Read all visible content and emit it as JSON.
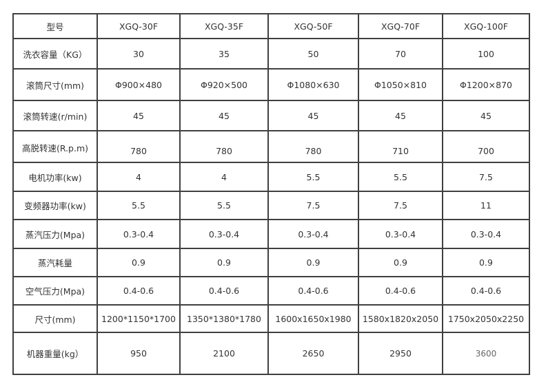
{
  "table": {
    "headers": [
      "型号",
      "XGQ-30F",
      "XGQ-35F",
      "XGQ-50F",
      "XGQ-70F",
      "XGQ-100F"
    ],
    "rows": [
      {
        "label": "洗衣容量（KG）",
        "values": [
          "30",
          "35",
          "50",
          "70",
          "100"
        ]
      },
      {
        "label": "滚筒尺寸(mm)",
        "values": [
          "Φ900×480",
          "Φ920×500",
          "Φ1080×630",
          "Φ1050×810",
          "Φ1200×870"
        ]
      },
      {
        "label": "滚筒转速(r/min)",
        "values": [
          "45",
          "45",
          "45",
          "45",
          "45"
        ]
      },
      {
        "label": "高脱转速(R.p.m)",
        "values": [
          "780",
          "780",
          "780",
          "710",
          "700"
        ]
      },
      {
        "label": "电机功率(kw)",
        "values": [
          "4",
          "4",
          "5.5",
          "5.5",
          "7.5"
        ]
      },
      {
        "label": "变频器功率(kw)",
        "values": [
          "5.5",
          "5.5",
          "7.5",
          "7.5",
          "11"
        ]
      },
      {
        "label": "蒸汽压力(Mpa)",
        "values": [
          "0.3-0.4",
          "0.3-0.4",
          "0.3-0.4",
          "0.3-0.4",
          "0.3-0.4"
        ]
      },
      {
        "label": "蒸汽耗量",
        "values": [
          "0.9",
          "0.9",
          "0.9",
          "0.9",
          "0.9"
        ]
      },
      {
        "label": "空气压力(Mpa)",
        "values": [
          "0.4-0.6",
          "0.4-0.6",
          "0.4-0.6",
          "0.4-0.6",
          "0.4-0.6"
        ]
      },
      {
        "label": "尺寸(mm)",
        "values": [
          "1200*1150*1700",
          "1350*1380*1780",
          "1600x1650x1980",
          "1580x1820x2050",
          "1750x2050x2250"
        ]
      },
      {
        "label": "机器重量(kg）",
        "values": [
          "950",
          "2100",
          "2650",
          "2950",
          "3600"
        ]
      }
    ]
  }
}
